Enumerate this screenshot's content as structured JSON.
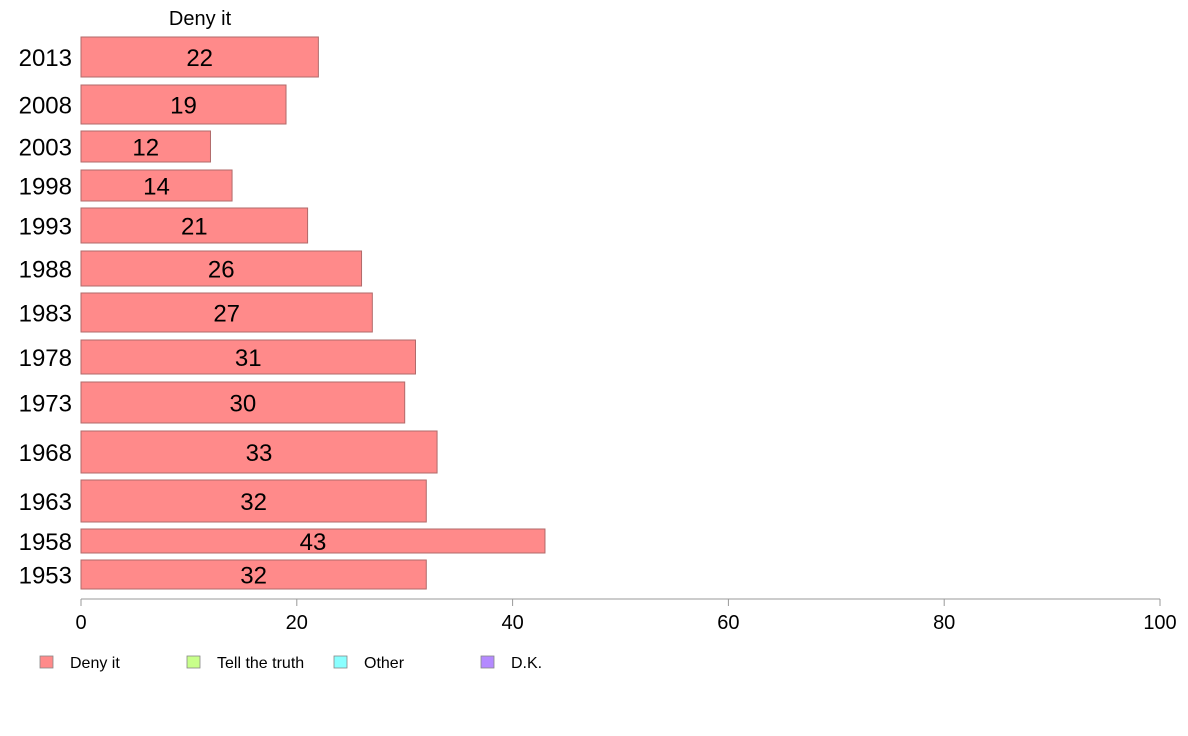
{
  "chart_data": {
    "type": "bar",
    "orientation": "horizontal",
    "title": "Deny it",
    "categories": [
      "2013",
      "2008",
      "2003",
      "1998",
      "1993",
      "1988",
      "1983",
      "1978",
      "1973",
      "1968",
      "1963",
      "1958",
      "1953"
    ],
    "series": [
      {
        "name": "Deny it",
        "values": [
          22,
          19,
          12,
          14,
          21,
          26,
          27,
          31,
          30,
          33,
          32,
          43,
          32
        ],
        "color": "#ff8a8a"
      }
    ],
    "xlim": [
      0,
      100
    ],
    "xticks": [
      0,
      20,
      40,
      60,
      80,
      100
    ],
    "grid": false,
    "legend": {
      "position": "bottom",
      "items": [
        {
          "label": "Deny it",
          "color": "#ff8a8a"
        },
        {
          "label": "Tell the truth",
          "color": "#c8ff8a"
        },
        {
          "label": "Other",
          "color": "#8affff"
        },
        {
          "label": "D.K.",
          "color": "#b48aff"
        }
      ]
    }
  }
}
